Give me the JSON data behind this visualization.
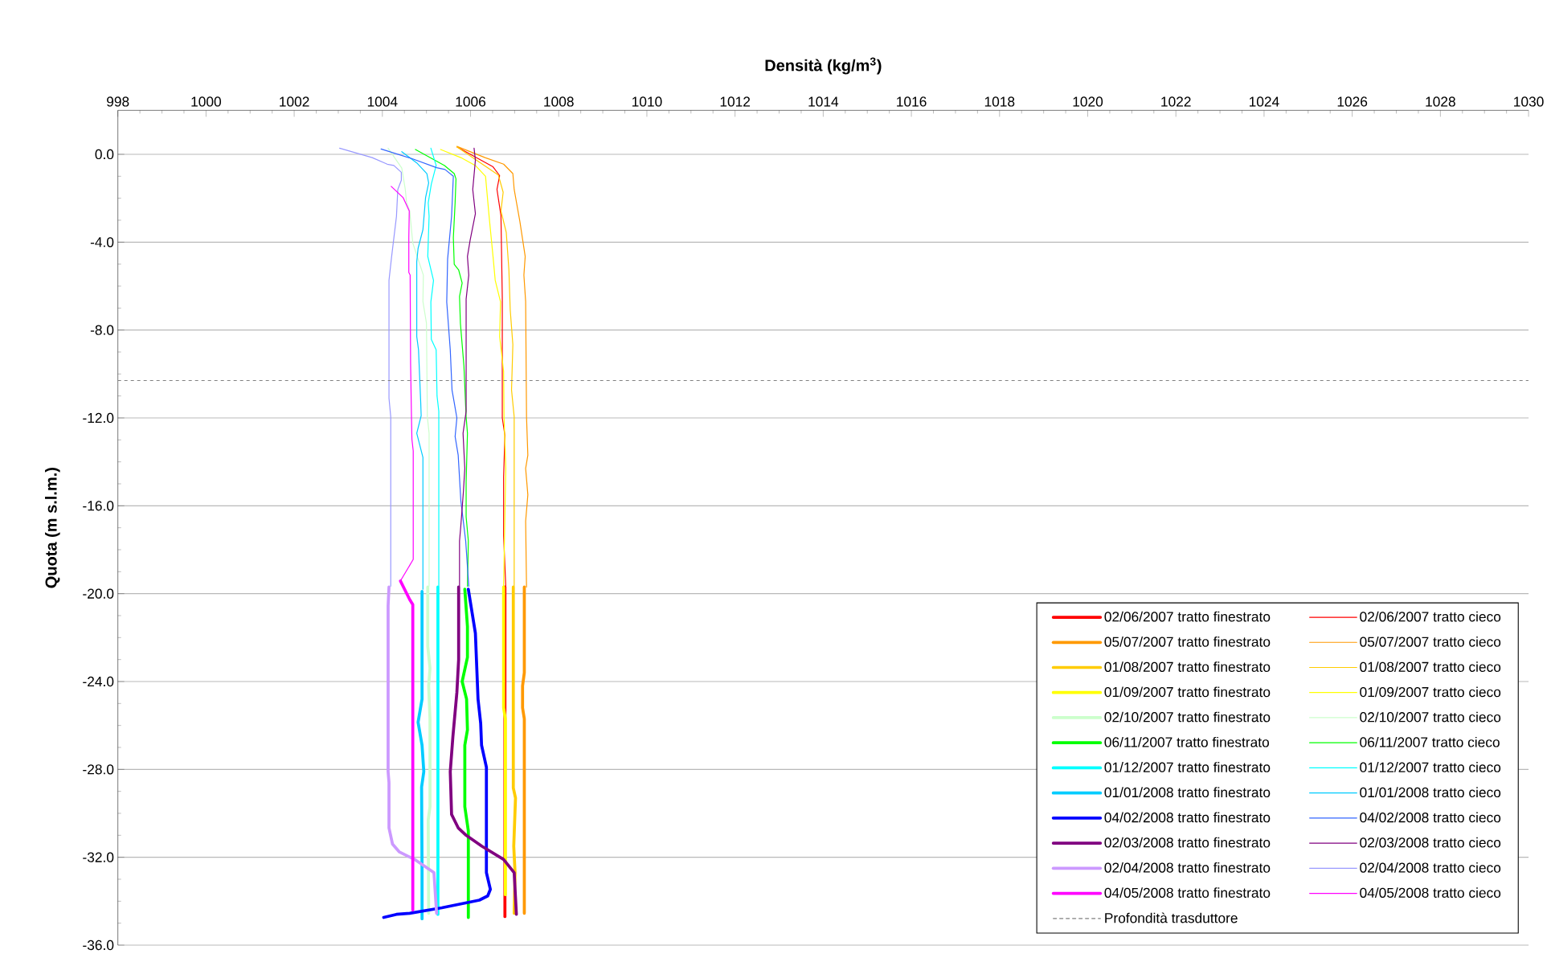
{
  "chart_data": {
    "type": "line",
    "xlabel": "**Densità (kg/m$^{3}$)**",
    "ylabel": "**Quota (m s.l.m.)**",
    "xlim": [
      998,
      1030
    ],
    "ylim": [
      -36,
      2
    ],
    "xticks": [
      998,
      1000,
      1002,
      1004,
      1006,
      1008,
      1010,
      1012,
      1014,
      1016,
      1018,
      1020,
      1022,
      1024,
      1026,
      1028,
      1030
    ],
    "yticks": [
      {
        "value": 0,
        "label": "0.0"
      },
      {
        "value": -4,
        "label": "-4.0"
      },
      {
        "value": -8,
        "label": "-8.0"
      },
      {
        "value": -12,
        "label": "-12.0"
      },
      {
        "value": -16,
        "label": "-16.0"
      },
      {
        "value": -20,
        "label": "-20.0"
      },
      {
        "value": -24,
        "label": "-24.0"
      },
      {
        "value": -28,
        "label": "-28.0"
      },
      {
        "value": -32,
        "label": "-32.0"
      },
      {
        "value": -36,
        "label": "-36.0"
      }
    ],
    "grid": "y",
    "legend": "bottom right",
    "ref_lines": [
      {
        "axis": "y",
        "value": -10.3,
        "label": "Profondità trasduttore",
        "color": "#808080",
        "line_style": "dashed"
      }
    ],
    "series": [
      {
        "name": "02/06/2007 tratto finestrato",
        "color": "#ff0000",
        "x": [
          1006.78,
          1006.78
        ],
        "values": [
          -19.7,
          -34.7
        ]
      },
      {
        "name": "02/06/2007 tratto cieco",
        "color": "#ff0000",
        "x": [
          1005.69,
          1006.51,
          1006.66,
          1006.6,
          1006.69,
          1006.72,
          1006.72,
          1006.78,
          1006.75,
          1006.75,
          1006.8
        ],
        "values": [
          0.34,
          -0.57,
          -0.97,
          -1.6,
          -2.8,
          -6.5,
          -12.0,
          -12.8,
          -14.7,
          -17.35,
          -19.7
        ]
      },
      {
        "name": "05/07/2007 tratto finestrato",
        "color": "#ff9900",
        "x": [
          1007.22,
          1007.22,
          1007.18,
          1007.18,
          1007.22,
          1007.22
        ],
        "values": [
          -19.7,
          -23.6,
          -24.2,
          -25.2,
          -25.7,
          -34.55
        ]
      },
      {
        "name": "05/07/2007 tratto cieco",
        "color": "#ff9900",
        "x": [
          1005.69,
          1006.33,
          1006.75,
          1006.96,
          1006.99,
          1007.12,
          1007.24,
          1007.21,
          1007.25,
          1007.27,
          1007.3,
          1007.25,
          1007.3,
          1007.25,
          1007.27
        ],
        "values": [
          0.36,
          -0.15,
          -0.45,
          -0.88,
          -1.6,
          -3.07,
          -4.65,
          -5.5,
          -6.7,
          -11.95,
          -13.7,
          -14.3,
          -15.5,
          -16.7,
          -19.7
        ]
      },
      {
        "name": "01/08/2007 tratto finestrato",
        "color": "#ffcc00",
        "x": [
          1006.97,
          1006.97,
          1007.02,
          1006.98,
          1007.01,
          1006.99
        ],
        "values": [
          -19.7,
          -28.84,
          -29.3,
          -31.5,
          -32.7,
          -34.55
        ]
      },
      {
        "name": "01/08/2007 tratto cieco",
        "color": "#ffcc00",
        "x": [
          1005.69,
          1006.63,
          1006.74,
          1006.69,
          1006.81,
          1006.87,
          1006.9,
          1006.96,
          1006.93,
          1006.99,
          1006.99
        ],
        "values": [
          0.34,
          -0.94,
          -1.73,
          -2.58,
          -3.55,
          -5.26,
          -7.08,
          -8.66,
          -10.73,
          -11.95,
          -19.66
        ]
      },
      {
        "name": "01/09/2007 tratto finestrato",
        "color": "#ffff00",
        "x": [
          1006.75,
          1006.75,
          1006.79,
          1006.79
        ],
        "values": [
          -19.7,
          -25.2,
          -25.7,
          -33.7
        ]
      },
      {
        "name": "01/09/2007 tratto cieco",
        "color": "#ffff00",
        "x": [
          1005.32,
          1005.78,
          1006.11,
          1006.34,
          1006.42,
          1006.51,
          1006.56,
          1006.68,
          1006.66,
          1006.75,
          1006.76,
          1006.8,
          1006.75
        ],
        "values": [
          0.22,
          -0.15,
          -0.51,
          -1.0,
          -2.8,
          -4.65,
          -5.74,
          -6.72,
          -8.3,
          -9.88,
          -11.95,
          -14.3,
          -19.66
        ]
      },
      {
        "name": "02/10/2007 tratto finestrato",
        "color": "#ccffcc",
        "x": [
          1005.03,
          1005.03,
          1005.08,
          1005.05,
          1005.08,
          1005.08,
          1005.04,
          1005.05
        ],
        "values": [
          -19.7,
          -22.4,
          -23.4,
          -24.2,
          -25.7,
          -29.7,
          -30.3,
          -34.55
        ]
      },
      {
        "name": "02/10/2007 tratto cieco",
        "color": "#ccffcc",
        "x": [
          1004.13,
          1004.44,
          1004.52,
          1004.55,
          1004.62,
          1004.69,
          1004.93,
          1004.92,
          1005.0,
          1005.02,
          1005.06,
          1005.06
        ],
        "values": [
          0.28,
          -0.63,
          -1.6,
          -2.21,
          -2.58,
          -4.04,
          -5.5,
          -6.7,
          -7.69,
          -11.95,
          -12.7,
          -19.66
        ]
      },
      {
        "name": "06/11/2007 tratto finestrato",
        "color": "#00ff00",
        "x": [
          1005.87,
          1005.93,
          1005.93,
          1005.81,
          1005.91,
          1005.93,
          1005.87,
          1005.87,
          1005.95,
          1005.95
        ],
        "values": [
          -19.8,
          -21.5,
          -22.9,
          -24.0,
          -24.8,
          -26.2,
          -26.9,
          -29.7,
          -30.8,
          -34.74
        ]
      },
      {
        "name": "06/11/2007 tratto cieco",
        "color": "#00ff00",
        "x": [
          1004.75,
          1005.41,
          1005.63,
          1005.67,
          1005.65,
          1005.61,
          1005.63,
          1005.73,
          1005.81,
          1005.75,
          1005.77,
          1005.85,
          1005.9,
          1005.93,
          1005.9,
          1005.9,
          1005.95,
          1005.93
        ],
        "values": [
          0.22,
          -0.51,
          -0.88,
          -1.12,
          -2.21,
          -3.8,
          -5.01,
          -5.26,
          -5.86,
          -6.47,
          -7.69,
          -9.64,
          -11.95,
          -12.7,
          -14.9,
          -16.5,
          -17.6,
          -19.66
        ]
      },
      {
        "name": "01/12/2007 tratto finestrato",
        "color": "#00ffff",
        "x": [
          1005.26,
          1005.26
        ],
        "values": [
          -19.7,
          -34.6
        ]
      },
      {
        "name": "01/12/2007 tratto cieco",
        "color": "#00ffff",
        "x": [
          1005.1,
          1005.22,
          1005.11,
          1005.04,
          1005.06,
          1005.03,
          1005.16,
          1005.1,
          1005.11,
          1005.22,
          1005.24,
          1005.28,
          1005.28
        ],
        "values": [
          0.28,
          -0.51,
          -1.36,
          -2.21,
          -2.82,
          -4.65,
          -5.74,
          -6.72,
          -8.42,
          -8.9,
          -11.0,
          -11.7,
          -19.66
        ]
      },
      {
        "name": "01/01/2008 tratto finestrato",
        "color": "#00ccff",
        "x": [
          1004.9,
          1004.9,
          1004.81,
          1004.9,
          1004.94,
          1004.89,
          1004.9,
          1004.9
        ],
        "values": [
          -19.9,
          -24.8,
          -25.85,
          -26.9,
          -28.1,
          -28.8,
          -32.7,
          -34.8
        ]
      },
      {
        "name": "01/01/2008 tratto cieco",
        "color": "#00ccff",
        "x": [
          1004.44,
          1004.78,
          1005.01,
          1005.05,
          1004.98,
          1004.92,
          1004.81,
          1004.78,
          1004.78,
          1004.82,
          1004.87,
          1004.88,
          1004.78,
          1004.92,
          1004.92
        ],
        "values": [
          0.12,
          -0.39,
          -0.88,
          -1.3,
          -1.97,
          -3.43,
          -4.28,
          -4.89,
          -8.3,
          -8.9,
          -11.3,
          -11.9,
          -12.7,
          -13.8,
          -19.8
        ]
      },
      {
        "name": "04/02/2008 tratto finestrato",
        "color": "#0000ff",
        "x": [
          1005.95,
          1006.11,
          1006.17,
          1006.23,
          1006.25,
          1006.36,
          1006.36,
          1006.45,
          1006.39,
          1006.2,
          1005.35,
          1004.62,
          1004.32,
          1004.03
        ],
        "values": [
          -19.8,
          -21.8,
          -24.8,
          -25.9,
          -26.9,
          -27.9,
          -32.7,
          -33.46,
          -33.76,
          -33.95,
          -34.3,
          -34.55,
          -34.6,
          -34.74
        ]
      },
      {
        "name": "04/02/2008 tratto cieco",
        "color": "#3366ff",
        "x": [
          1003.97,
          1004.69,
          1005.23,
          1005.42,
          1005.61,
          1005.57,
          1005.48,
          1005.46,
          1005.54,
          1005.58,
          1005.63,
          1005.69,
          1005.65,
          1005.72,
          1005.78,
          1005.89,
          1005.96
        ],
        "values": [
          0.24,
          -0.21,
          -0.61,
          -0.69,
          -1.0,
          -2.82,
          -4.77,
          -6.72,
          -8.9,
          -10.73,
          -11.3,
          -12.0,
          -12.85,
          -13.7,
          -15.77,
          -17.6,
          -19.66
        ]
      },
      {
        "name": "02/03/2008 tratto finestrato",
        "color": "#800080",
        "x": [
          1005.73,
          1005.73,
          1005.69,
          1005.6,
          1005.54,
          1005.57,
          1005.72,
          1005.9,
          1006.26,
          1006.75,
          1006.99,
          1007.04
        ],
        "values": [
          -19.7,
          -23.0,
          -24.5,
          -26.5,
          -28.1,
          -30.05,
          -30.66,
          -31.0,
          -31.5,
          -32.1,
          -32.7,
          -34.6
        ]
      },
      {
        "name": "02/03/2008 tratto cieco",
        "color": "#800080",
        "x": [
          1006.08,
          1006.11,
          1006.05,
          1006.11,
          1005.99,
          1005.93,
          1005.96,
          1005.9,
          1005.9,
          1005.83,
          1005.87,
          1005.84,
          1005.78,
          1005.75,
          1005.75
        ],
        "values": [
          0.28,
          -0.27,
          -1.6,
          -2.7,
          -3.92,
          -4.65,
          -5.5,
          -6.59,
          -11.7,
          -12.7,
          -14.3,
          -15.3,
          -16.9,
          -17.6,
          -19.66
        ]
      },
      {
        "name": "02/04/2008 tratto finestrato",
        "color": "#cc99ff",
        "x": [
          1004.15,
          1004.13,
          1004.13,
          1004.15,
          1004.15,
          1004.23,
          1004.38,
          1004.75,
          1005.17,
          1005.23
        ],
        "values": [
          -19.7,
          -20.56,
          -28.1,
          -28.6,
          -30.66,
          -31.4,
          -31.75,
          -32.12,
          -32.7,
          -34.55
        ]
      },
      {
        "name": "02/04/2008 tratto cieco",
        "color": "#9999ff",
        "x": [
          1003.03,
          1003.77,
          1004.11,
          1004.26,
          1004.43,
          1004.43,
          1004.35,
          1004.32,
          1004.21,
          1004.15,
          1004.15,
          1004.19,
          1004.19
        ],
        "values": [
          0.28,
          -0.15,
          -0.45,
          -0.51,
          -0.82,
          -1.18,
          -1.6,
          -2.82,
          -4.65,
          -5.74,
          -11.1,
          -11.95,
          -19.66
        ]
      },
      {
        "name": "04/05/2008 tratto finestrato",
        "color": "#ff00ff",
        "x": [
          1004.41,
          1004.62,
          1004.69,
          1004.69
        ],
        "values": [
          -19.42,
          -20.27,
          -20.5,
          -34.4
        ]
      },
      {
        "name": "04/05/2008 tratto cieco",
        "color": "#ff00ff",
        "x": [
          1004.2,
          1004.47,
          1004.61,
          1004.6,
          1004.6,
          1004.63,
          1004.64,
          1004.66,
          1004.67,
          1004.7,
          1004.7,
          1004.41
        ],
        "values": [
          -1.46,
          -1.97,
          -2.58,
          -3.8,
          -5.38,
          -5.5,
          -9.5,
          -11.95,
          -12.97,
          -13.5,
          -18.44,
          -19.42
        ]
      }
    ]
  }
}
